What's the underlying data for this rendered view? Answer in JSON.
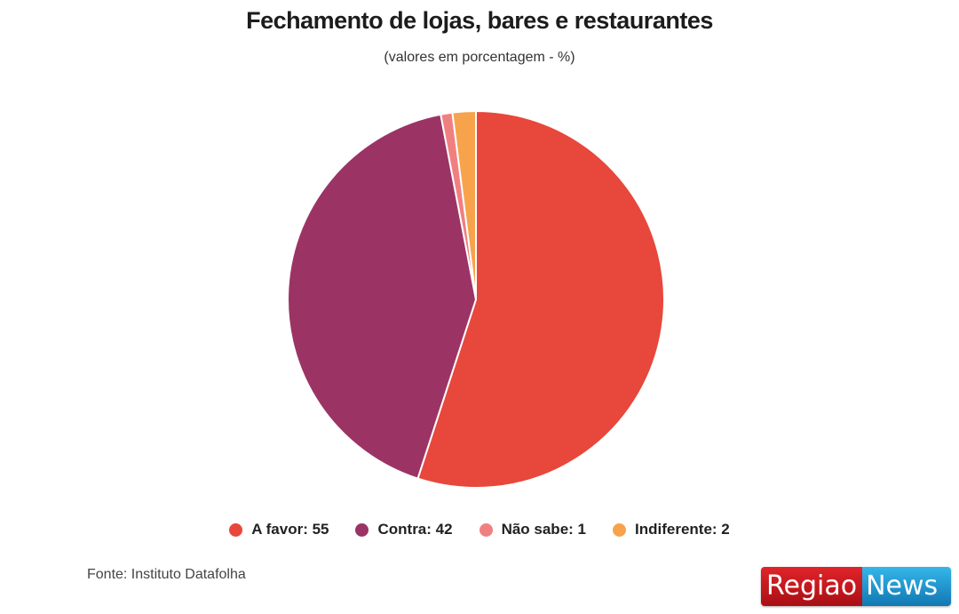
{
  "chart_data": {
    "type": "pie",
    "title": "Fechamento de lojas, bares e restaurantes",
    "subtitle": "(valores em porcentagem - %)",
    "legend_position": "bottom",
    "slices": [
      {
        "label": "A favor",
        "value": 55,
        "color": "#e8473b",
        "legend_text": "A favor: 55"
      },
      {
        "label": "Contra",
        "value": 42,
        "color": "#9b3465",
        "legend_text": "Contra: 42"
      },
      {
        "label": "Não sabe",
        "value": 1,
        "color": "#f08080",
        "legend_text": "Não sabe: 1"
      },
      {
        "label": "Indiferente",
        "value": 2,
        "color": "#f7a34c",
        "legend_text": "Indiferente: 2"
      }
    ]
  },
  "source": "Fonte: Instituto Datafolha",
  "logo": {
    "left": "Regiao",
    "right": "News"
  }
}
